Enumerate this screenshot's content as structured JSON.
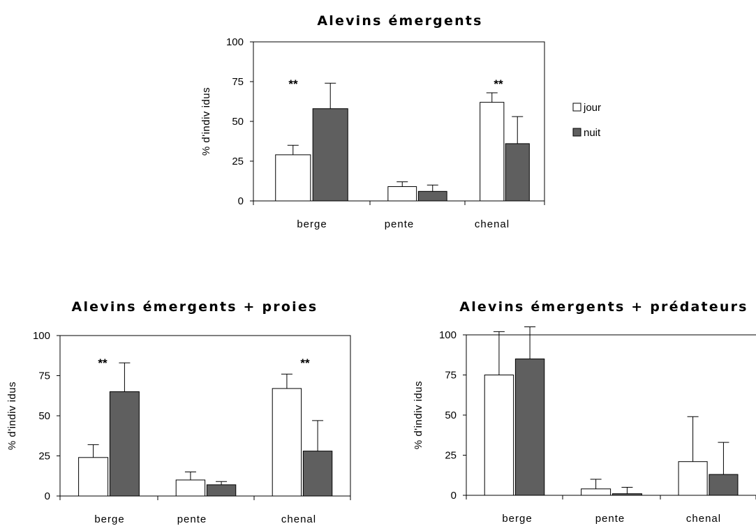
{
  "legend": {
    "entries": [
      {
        "label": "jour",
        "color": "#ffffff"
      },
      {
        "label": "nuit",
        "color": "#5f5f5f"
      }
    ]
  },
  "chart_data": [
    {
      "type": "bar",
      "title": "Alevins émergents",
      "ylabel": "% d'indiv idus",
      "xlabel": "",
      "ylim": [
        0,
        100
      ],
      "yticks": [
        0,
        25,
        50,
        75,
        100
      ],
      "categories": [
        "berge",
        "pente",
        "chenal"
      ],
      "series": [
        {
          "name": "jour",
          "values": [
            29,
            9,
            62
          ],
          "errors": [
            6,
            3,
            6
          ]
        },
        {
          "name": "nuit",
          "values": [
            58,
            6,
            36
          ],
          "errors": [
            16,
            4,
            17
          ]
        }
      ],
      "annotations": [
        {
          "category": "berge",
          "text": "**"
        },
        {
          "category": "chenal",
          "text": "**"
        }
      ],
      "legend": "right"
    },
    {
      "type": "bar",
      "title": "Alevins émergents + proies",
      "ylabel": "% d'indiv idus",
      "xlabel": "",
      "ylim": [
        0,
        100
      ],
      "yticks": [
        0,
        25,
        50,
        75,
        100
      ],
      "categories": [
        "berge",
        "pente",
        "chenal"
      ],
      "series": [
        {
          "name": "jour",
          "values": [
            24,
            10,
            67
          ],
          "errors": [
            8,
            5,
            9
          ]
        },
        {
          "name": "nuit",
          "values": [
            65,
            7,
            28
          ],
          "errors": [
            18,
            2,
            19
          ]
        }
      ],
      "annotations": [
        {
          "category": "berge",
          "text": "**"
        },
        {
          "category": "chenal",
          "text": "**"
        }
      ]
    },
    {
      "type": "bar",
      "title": "Alevins émergents + prédateurs",
      "ylabel": "% d'indiv idus",
      "xlabel": "",
      "ylim": [
        0,
        100
      ],
      "yticks": [
        0,
        25,
        50,
        75,
        100
      ],
      "categories": [
        "berge",
        "pente",
        "chenal"
      ],
      "series": [
        {
          "name": "jour",
          "values": [
            75,
            4,
            21
          ],
          "errors": [
            27,
            6,
            28
          ]
        },
        {
          "name": "nuit",
          "values": [
            85,
            1,
            13
          ],
          "errors": [
            20,
            4,
            20
          ]
        }
      ],
      "annotations": []
    }
  ]
}
